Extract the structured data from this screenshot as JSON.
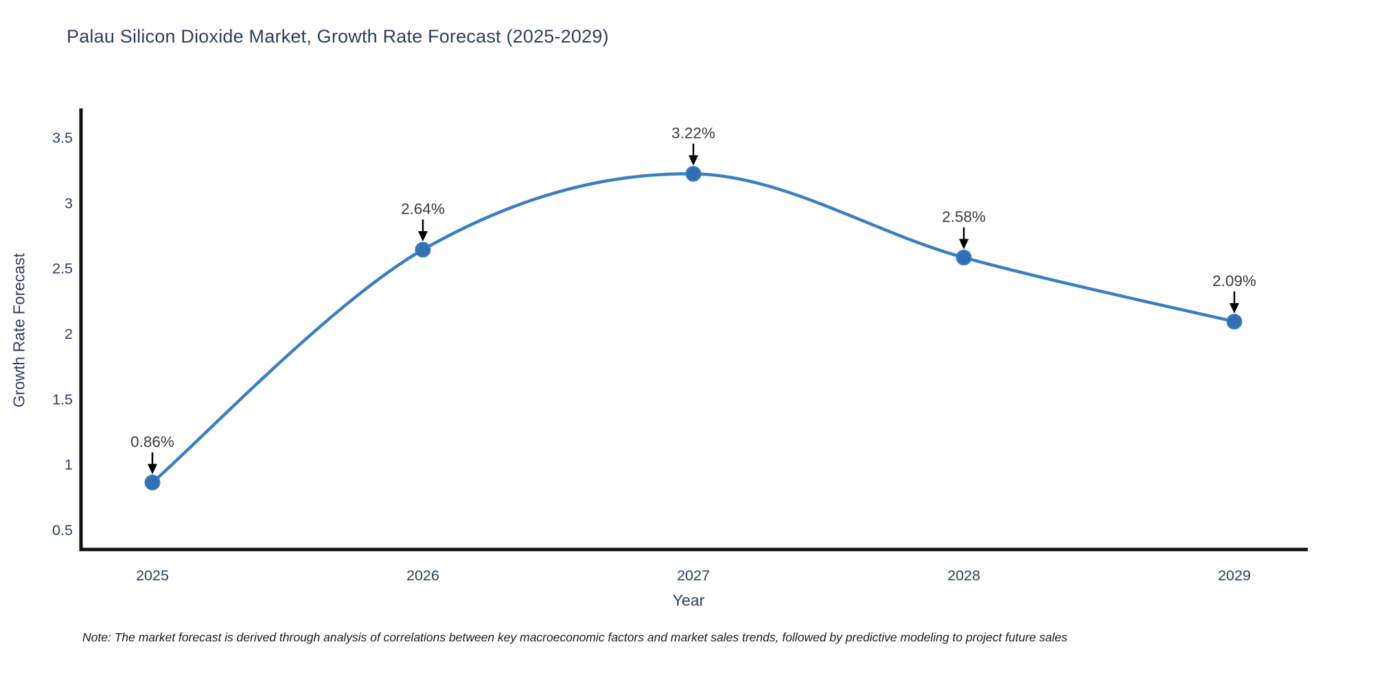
{
  "title": "Palau Silicon Dioxide Market, Growth Rate Forecast (2025-2029)",
  "note": "Note: The market forecast is derived through analysis of correlations between key macroeconomic factors and market sales trends, followed by predictive modeling to project future sales",
  "chart_data": {
    "type": "line",
    "title": "Palau Silicon Dioxide Market, Growth Rate Forecast (2025-2029)",
    "categories": [
      "2025",
      "2026",
      "2027",
      "2028",
      "2029"
    ],
    "series": [
      {
        "name": "Growth Rate Forecast",
        "values": [
          0.86,
          2.64,
          3.22,
          2.58,
          2.09
        ],
        "point_labels": [
          "0.86%",
          "2.64%",
          "3.22%",
          "2.58%",
          "2.09%"
        ]
      }
    ],
    "xlabel": "Year",
    "ylabel": "Growth Rate Forecast",
    "yticks": [
      0.5,
      1,
      1.5,
      2,
      2.5,
      3,
      3.5
    ],
    "ylim": [
      0.34,
      3.72
    ],
    "grid": false,
    "legend_position": "none",
    "line_shape": "spline",
    "marker": "circle",
    "annotation_arrows": "black-down-arrow"
  },
  "colors": {
    "line": "#3a7ebf",
    "marker_fill": "#3070b3",
    "marker_edge": "#3a7ebf",
    "axis": "#111111",
    "tick_text": "#2a3f5f",
    "title_text": "#2a3f5f",
    "annotation_text": "#3a3a3a",
    "arrow": "#000000",
    "background": "#ffffff"
  }
}
